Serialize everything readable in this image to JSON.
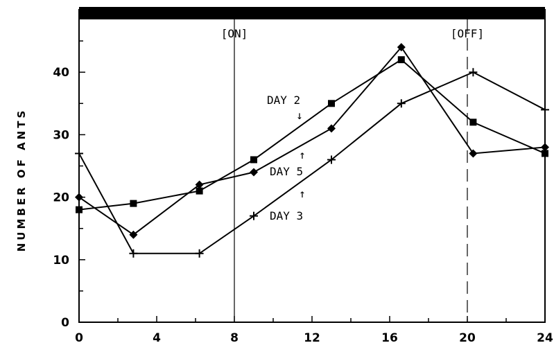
{
  "chart_data": {
    "type": "line",
    "ylabel": "NUMBER OF ANTS",
    "xlabel": "",
    "xlim": [
      0,
      24
    ],
    "ylim": [
      0,
      50
    ],
    "x_ticks": [
      0,
      4,
      8,
      12,
      16,
      20,
      24
    ],
    "x_tick_labels": [
      "0",
      "4",
      "8",
      "12",
      "16",
      "20",
      "24"
    ],
    "y_ticks": [
      0,
      10,
      20,
      30,
      40
    ],
    "y_tick_labels": [
      "0",
      "10",
      "20",
      "30",
      "40"
    ],
    "grid": false,
    "top_bar_color": "#000000",
    "markers": [
      {
        "label": "[ON]",
        "x": 8,
        "style": "solid"
      },
      {
        "label": "[OFF]",
        "x": 20,
        "style": "dashed"
      }
    ],
    "series": [
      {
        "name": "DAY 2",
        "marker": "square",
        "x": [
          0,
          2.8,
          6.2,
          9.0,
          13.0,
          16.6,
          20.3,
          24.0
        ],
        "y": [
          18,
          19,
          21,
          26,
          35,
          42,
          32,
          27
        ]
      },
      {
        "name": "DAY 5",
        "marker": "diamond",
        "x": [
          0,
          2.8,
          6.2,
          9.0,
          13.0,
          16.6,
          20.3,
          24.0
        ],
        "y": [
          20,
          14,
          22,
          24,
          31,
          44,
          27,
          28
        ]
      },
      {
        "name": "DAY 3",
        "marker": "plus",
        "x": [
          0,
          2.8,
          6.2,
          9.0,
          13.0,
          16.6,
          20.3,
          24.0
        ],
        "y": [
          27,
          11,
          11,
          17,
          26,
          35,
          40,
          34
        ]
      }
    ],
    "annotations": [
      {
        "text": "DAY 2",
        "arrow": "↓",
        "series": "DAY 2",
        "arrow_position": "below"
      },
      {
        "text": "DAY 5",
        "arrow": "↑",
        "series": "DAY 5",
        "arrow_position": "above"
      },
      {
        "text": "DAY 3",
        "arrow": "↑",
        "series": "DAY 3",
        "arrow_position": "above"
      }
    ]
  }
}
